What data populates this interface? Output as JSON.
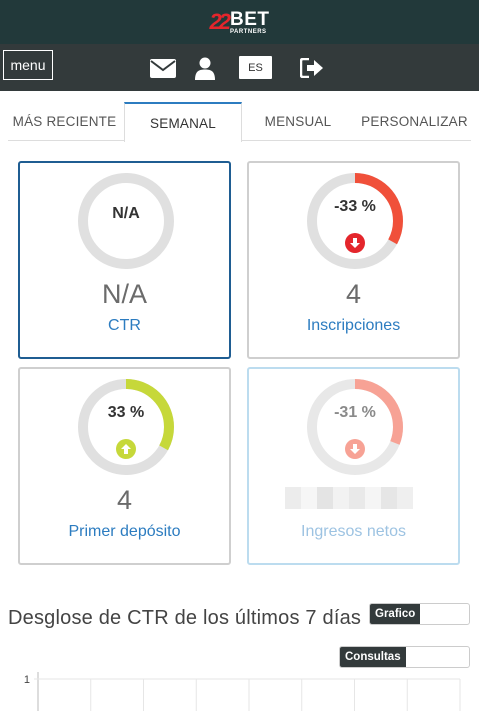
{
  "header": {
    "logo_number": "22",
    "logo_word": "BET",
    "logo_sub": "PARTNERS"
  },
  "navbar": {
    "menu_label": "menu",
    "icons": [
      "envelope-icon",
      "user-icon",
      "logout-icon"
    ],
    "lang_label": "ES"
  },
  "tabs": [
    {
      "label": "MÁS RECIENTE",
      "active": false
    },
    {
      "label": "SEMANAL",
      "active": true
    },
    {
      "label": "MENSUAL",
      "active": false
    },
    {
      "label": "PERSONALIZAR",
      "active": false
    }
  ],
  "cards": [
    {
      "gauge_text": "N/A",
      "value": "N/A",
      "label": "CTR",
      "gauge_fraction": 0,
      "gauge_color": "#e0e0e0",
      "trend": "none"
    },
    {
      "gauge_text": "-33 %",
      "value": "4",
      "label": "Inscripciones",
      "gauge_fraction": 0.33,
      "gauge_color": "#f0503a",
      "trend": "down"
    },
    {
      "gauge_text": "33 %",
      "value": "4",
      "label": "Primer depósito",
      "gauge_fraction": 0.33,
      "gauge_color": "#c6d83a",
      "trend": "up"
    },
    {
      "gauge_text": "-31 %",
      "value": "",
      "label": "Ingresos netos",
      "gauge_fraction": 0.31,
      "gauge_color": "#f7a295",
      "trend": "down"
    }
  ],
  "section": {
    "title": "Desglose de CTR de los últimos 7 días",
    "toggle_grafico": "Grafico",
    "toggle_consultas": "Consultas"
  },
  "chart_data": {
    "type": "line",
    "title": "",
    "ytick_labels": [
      "1"
    ],
    "gridlines_vertical": 8,
    "series": []
  },
  "colors": {
    "topbar": "#22393a",
    "navbar": "#333a3b",
    "accent_blue": "#2c7cc0",
    "down_red": "#e4262c",
    "up_green": "#c6d83a"
  }
}
